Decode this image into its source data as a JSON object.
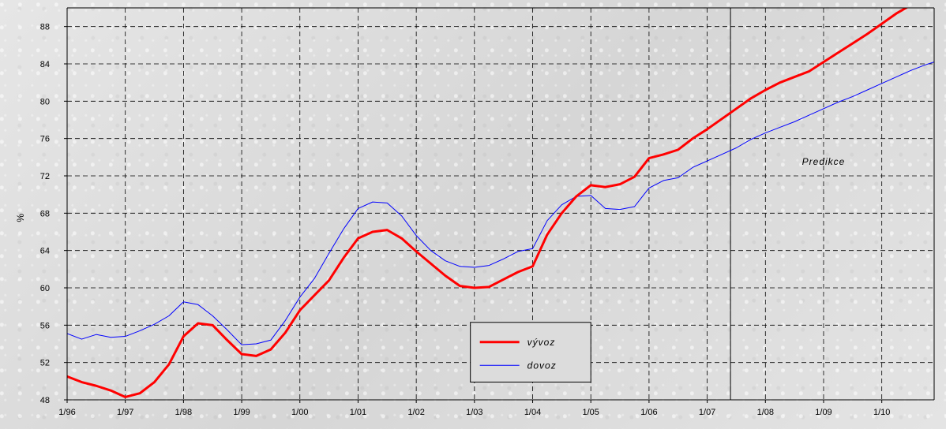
{
  "chart_data": {
    "type": "line",
    "title": "",
    "xlabel": "",
    "ylabel": "%",
    "ylim": [
      48,
      90
    ],
    "yticks": [
      48,
      52,
      56,
      60,
      64,
      68,
      72,
      76,
      80,
      84,
      88
    ],
    "ytick_labels": [
      "48",
      "52",
      "56",
      "60",
      "64",
      "68",
      "72",
      "76",
      "80",
      "84",
      "88"
    ],
    "xlim": [
      1996,
      2010.9
    ],
    "xticks": [
      1996,
      1997,
      1998,
      1999,
      2000,
      2001,
      2002,
      2003,
      2004,
      2005,
      2006,
      2007,
      2008,
      2009,
      2010
    ],
    "xtick_labels": [
      "1/96",
      "1/97",
      "1/98",
      "1/99",
      "1/00",
      "1/01",
      "1/02",
      "1/03",
      "1/04",
      "1/05",
      "1/06",
      "1/07",
      "1/08",
      "1/09",
      "1/10"
    ],
    "grid": true,
    "legend_position": "bottom-center",
    "prediction_start": 2007.4,
    "annotation": "Predikce",
    "series": [
      {
        "name": "vývoz",
        "color": "#ff0000",
        "width": 3,
        "x": [
          1996.0,
          1996.25,
          1996.5,
          1996.75,
          1997.0,
          1997.25,
          1997.5,
          1997.75,
          1998.0,
          1998.25,
          1998.5,
          1998.75,
          1999.0,
          1999.25,
          1999.5,
          1999.75,
          2000.0,
          2000.25,
          2000.5,
          2000.75,
          2001.0,
          2001.25,
          2001.5,
          2001.75,
          2002.0,
          2002.25,
          2002.5,
          2002.75,
          2003.0,
          2003.25,
          2003.5,
          2003.75,
          2004.0,
          2004.25,
          2004.5,
          2004.75,
          2005.0,
          2005.25,
          2005.5,
          2005.75,
          2006.0,
          2006.25,
          2006.5,
          2006.75,
          2007.0,
          2007.25,
          2007.5,
          2007.75,
          2008.0,
          2008.25,
          2008.5,
          2008.75,
          2009.0,
          2009.25,
          2009.5,
          2009.75,
          2010.0,
          2010.25,
          2010.5,
          2010.75
        ],
        "values": [
          50.5,
          49.9,
          49.5,
          49.0,
          48.3,
          48.7,
          49.9,
          51.8,
          54.8,
          56.2,
          56.0,
          54.4,
          52.9,
          52.7,
          53.4,
          55.2,
          57.6,
          59.2,
          60.8,
          63.2,
          65.3,
          66.0,
          66.2,
          65.3,
          63.9,
          62.6,
          61.3,
          60.2,
          60.0,
          60.1,
          60.9,
          61.7,
          62.3,
          65.7,
          68.0,
          69.8,
          71.0,
          70.8,
          71.1,
          71.9,
          73.9,
          74.3,
          74.8,
          76.0,
          77.0,
          78.1,
          79.2,
          80.3,
          81.2,
          82.0,
          82.6,
          83.2,
          84.2,
          85.2,
          86.2,
          87.2,
          88.3,
          89.4,
          90.3,
          91.2
        ]
      },
      {
        "name": "dovoz",
        "color": "#0000ff",
        "width": 1,
        "x": [
          1996.0,
          1996.25,
          1996.5,
          1996.75,
          1997.0,
          1997.25,
          1997.5,
          1997.75,
          1998.0,
          1998.25,
          1998.5,
          1998.75,
          1999.0,
          1999.25,
          1999.5,
          1999.75,
          2000.0,
          2000.25,
          2000.5,
          2000.75,
          2001.0,
          2001.25,
          2001.5,
          2001.75,
          2002.0,
          2002.25,
          2002.5,
          2002.75,
          2003.0,
          2003.25,
          2003.5,
          2003.75,
          2004.0,
          2004.25,
          2004.5,
          2004.75,
          2005.0,
          2005.25,
          2005.5,
          2005.75,
          2006.0,
          2006.25,
          2006.5,
          2006.75,
          2007.0,
          2007.25,
          2007.5,
          2007.75,
          2008.0,
          2008.25,
          2008.5,
          2008.75,
          2009.0,
          2009.25,
          2009.5,
          2009.75,
          2010.0,
          2010.25,
          2010.5,
          2010.75,
          2010.9
        ],
        "values": [
          55.1,
          54.5,
          55.0,
          54.7,
          54.8,
          55.4,
          56.1,
          57.0,
          58.5,
          58.2,
          57.0,
          55.5,
          53.9,
          54.0,
          54.4,
          56.5,
          59.0,
          61.0,
          63.7,
          66.3,
          68.5,
          69.2,
          69.1,
          67.7,
          65.6,
          64.0,
          62.9,
          62.3,
          62.2,
          62.4,
          63.1,
          63.9,
          64.2,
          67.2,
          68.9,
          69.8,
          69.9,
          68.5,
          68.4,
          68.7,
          70.7,
          71.5,
          71.8,
          72.9,
          73.6,
          74.3,
          75.0,
          75.9,
          76.6,
          77.2,
          77.8,
          78.5,
          79.2,
          79.9,
          80.5,
          81.2,
          81.9,
          82.6,
          83.3,
          83.9,
          84.2
        ]
      }
    ]
  }
}
